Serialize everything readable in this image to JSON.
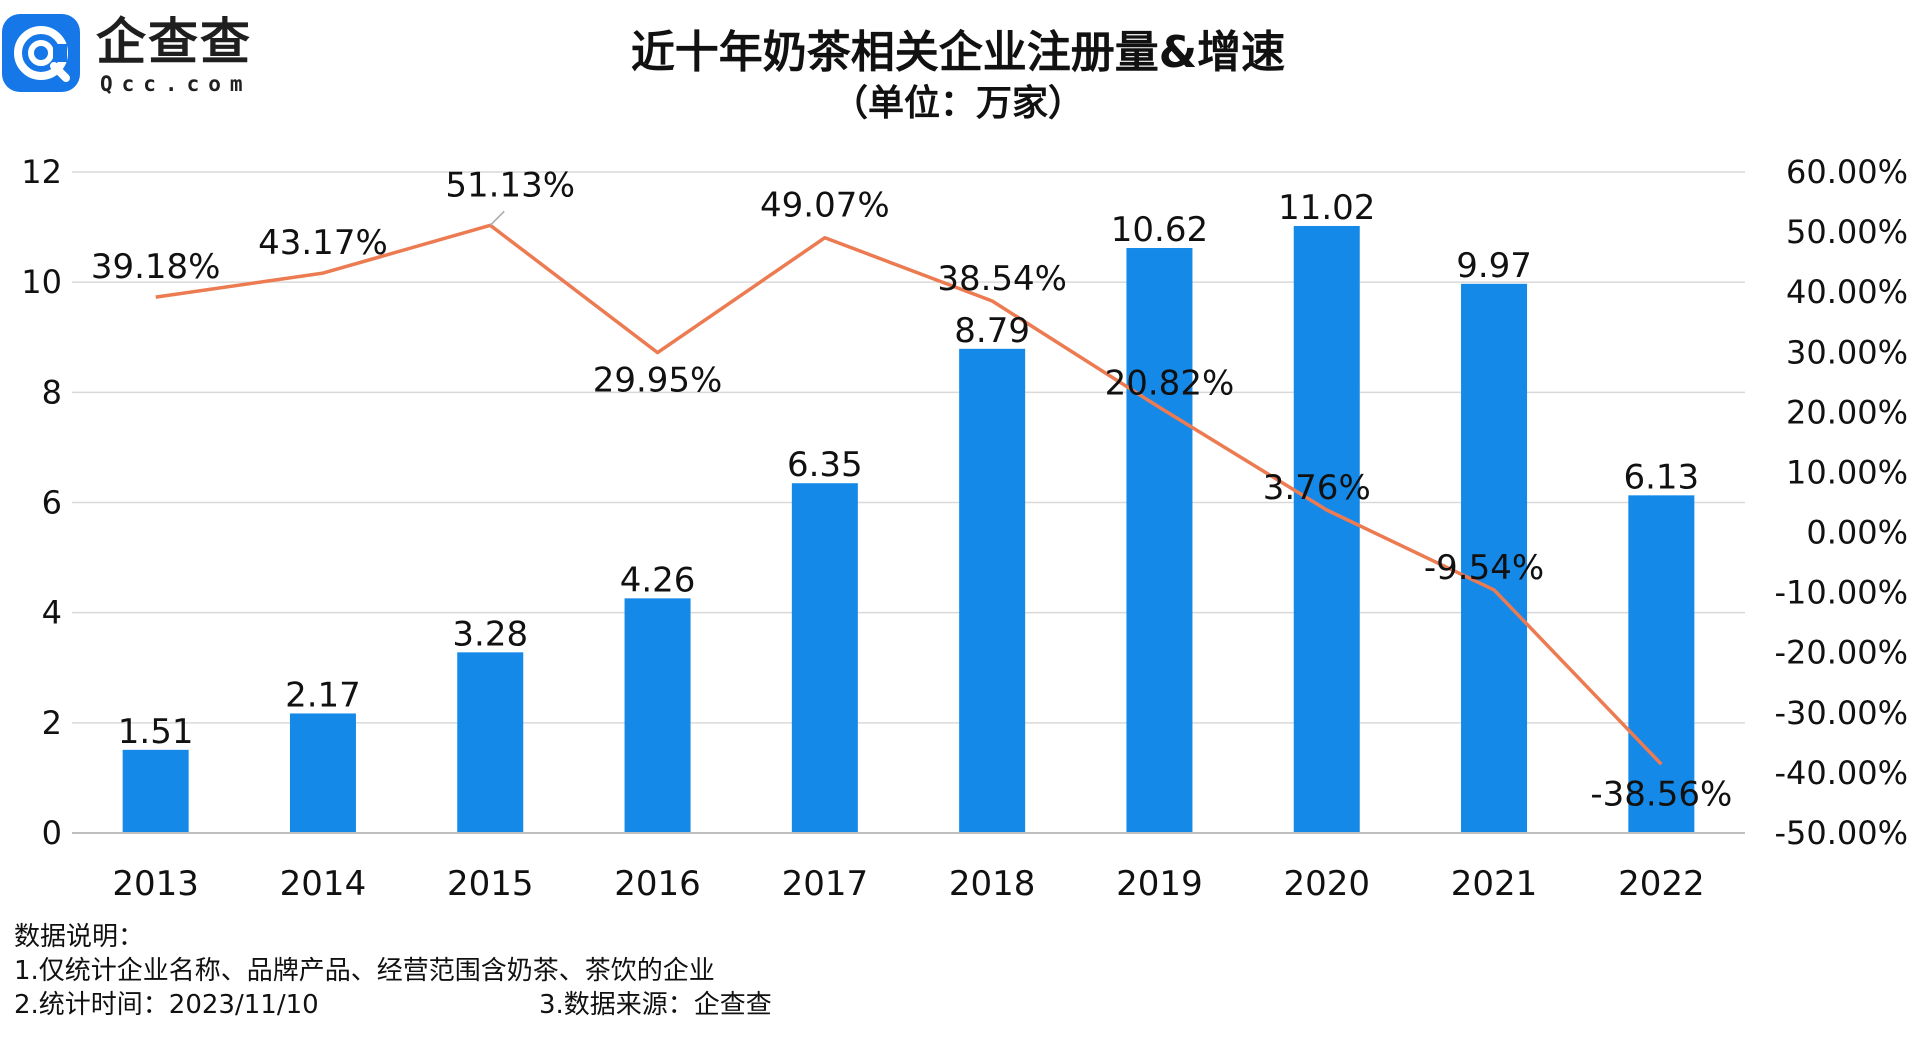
{
  "logo": {
    "name": "企查查",
    "domain": "Qcc.com"
  },
  "header": {
    "title": "近十年奶茶相关企业注册量&增速",
    "subtitle": "（单位：万家）"
  },
  "notes": {
    "heading": "数据说明：",
    "item1": "1.仅统计企业名称、品牌产品、经营范围含奶茶、茶饮的企业",
    "item2": "2.统计时间：2023/11/10",
    "item3": "3.数据来源：企查查"
  },
  "colors": {
    "bar": "#1589e8",
    "line": "#ec7b52",
    "grid": "#d9d9d9",
    "logo": "#1677e8"
  },
  "chart_data": {
    "type": "bar",
    "title": "近十年奶茶相关企业注册量&增速",
    "subtitle": "（单位：万家）",
    "categories": [
      "2013",
      "2014",
      "2015",
      "2016",
      "2017",
      "2018",
      "2019",
      "2020",
      "2021",
      "2022"
    ],
    "series": [
      {
        "type": "bar",
        "axis": "left",
        "values": [
          1.51,
          2.17,
          3.28,
          4.26,
          6.35,
          8.79,
          10.62,
          11.02,
          9.97,
          6.13
        ],
        "labels": [
          "1.51",
          "2.17",
          "3.28",
          "4.26",
          "6.35",
          "8.79",
          "10.62",
          "11.02",
          "9.97",
          "6.13"
        ]
      },
      {
        "type": "line",
        "axis": "right",
        "values": [
          39.18,
          43.17,
          51.13,
          29.95,
          49.07,
          38.54,
          20.82,
          3.76,
          -9.54,
          -38.56
        ],
        "labels": [
          "39.18%",
          "43.17%",
          "51.13%",
          "29.95%",
          "49.07%",
          "38.54%",
          "20.82%",
          "3.76%",
          "-9.54%",
          "-38.56%"
        ]
      }
    ],
    "y_left": {
      "min": 0,
      "max": 12,
      "ticks": [
        0,
        2,
        4,
        6,
        8,
        10,
        12
      ],
      "tick_labels": [
        "0",
        "2",
        "4",
        "6",
        "8",
        "10",
        "12"
      ]
    },
    "y_right": {
      "min": -50,
      "max": 60,
      "ticks": [
        -50,
        -40,
        -30,
        -20,
        -10,
        0,
        10,
        20,
        30,
        40,
        50,
        60
      ],
      "tick_labels": [
        "-50.00%",
        "-40.00%",
        "-30.00%",
        "-20.00%",
        "-10.00%",
        "0.00%",
        "10.00%",
        "20.00%",
        "30.00%",
        "40.00%",
        "50.00%",
        "60.00%"
      ]
    },
    "grid": true,
    "legend": "none"
  }
}
